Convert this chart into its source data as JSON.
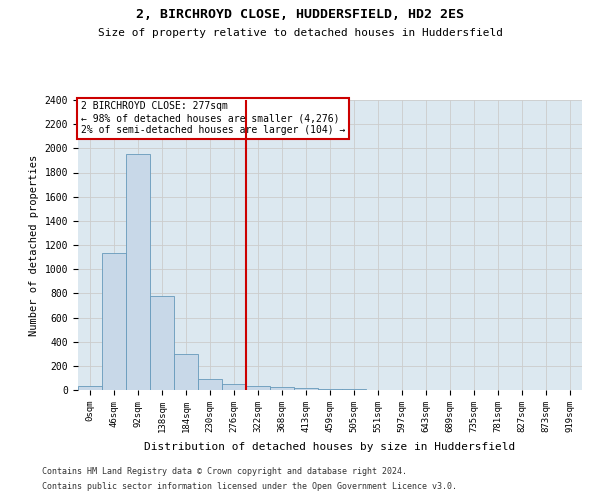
{
  "title1": "2, BIRCHROYD CLOSE, HUDDERSFIELD, HD2 2ES",
  "title2": "Size of property relative to detached houses in Huddersfield",
  "xlabel": "Distribution of detached houses by size in Huddersfield",
  "ylabel": "Number of detached properties",
  "footer1": "Contains HM Land Registry data © Crown copyright and database right 2024.",
  "footer2": "Contains public sector information licensed under the Open Government Licence v3.0.",
  "annotation_title": "2 BIRCHROYD CLOSE: 277sqm",
  "annotation_line1": "← 98% of detached houses are smaller (4,276)",
  "annotation_line2": "2% of semi-detached houses are larger (104) →",
  "property_size": 277,
  "bar_labels": [
    "0sqm",
    "46sqm",
    "92sqm",
    "138sqm",
    "184sqm",
    "230sqm",
    "276sqm",
    "322sqm",
    "368sqm",
    "413sqm",
    "459sqm",
    "505sqm",
    "551sqm",
    "597sqm",
    "643sqm",
    "689sqm",
    "735sqm",
    "781sqm",
    "827sqm",
    "873sqm",
    "919sqm"
  ],
  "bar_values": [
    30,
    1130,
    1950,
    780,
    300,
    90,
    50,
    35,
    22,
    15,
    10,
    5,
    3,
    2,
    1,
    1,
    1,
    0,
    0,
    0,
    0
  ],
  "bar_color": "#c8d8e8",
  "bar_edge_color": "#6699bb",
  "vline_color": "#cc0000",
  "vline_x": 6.5,
  "ylim": [
    0,
    2400
  ],
  "yticks": [
    0,
    200,
    400,
    600,
    800,
    1000,
    1200,
    1400,
    1600,
    1800,
    2000,
    2200,
    2400
  ],
  "annotation_box_color": "#ffffff",
  "annotation_box_edge": "#cc0000",
  "grid_color": "#cccccc",
  "background_color": "#dce8f0"
}
